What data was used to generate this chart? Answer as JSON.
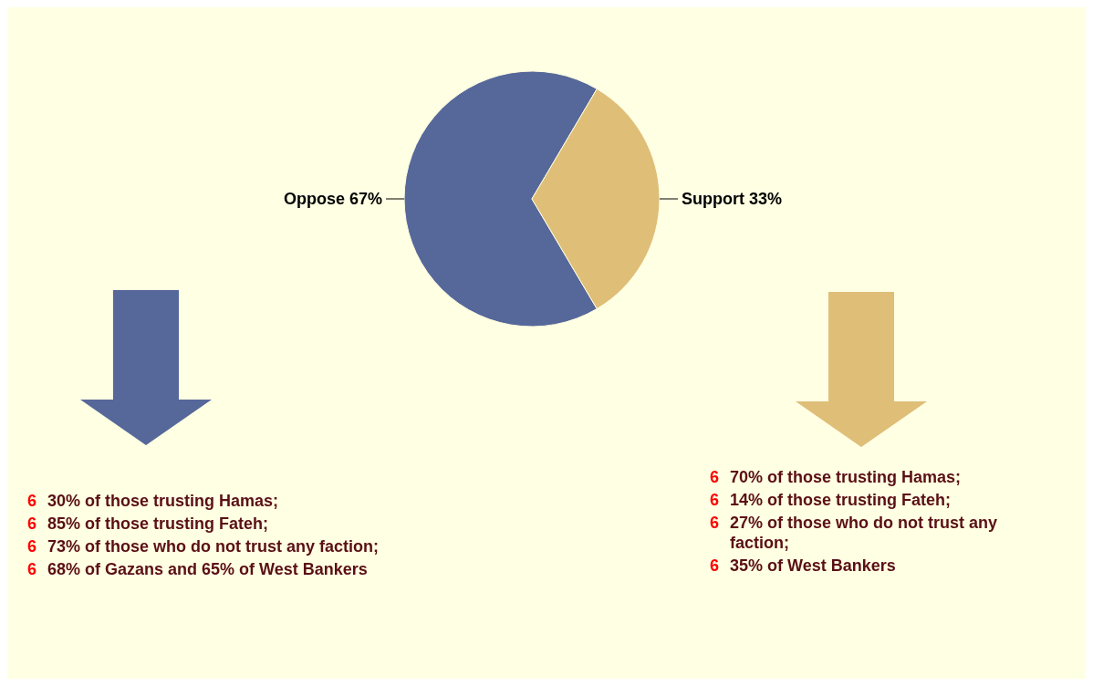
{
  "chart_data": {
    "type": "pie",
    "categories": [
      "Oppose",
      "Support"
    ],
    "values": [
      67,
      33
    ],
    "colors": [
      "#56689a",
      "#dfbe78"
    ],
    "value_labels": [
      "67%",
      "33%"
    ],
    "legend": false,
    "annotations": [
      "6 30% of those trusting Hamas;",
      "6 85% of those trusting Fateh;",
      "6 73% of those who do not trust any faction;",
      "6 68% of Gazans and 65% of West Bankers",
      "6 70% of those trusting Hamas;",
      "6 14% of those trusting Fateh;",
      "6 27% of those who do not trust any faction;",
      "6 35% of West Bankers"
    ]
  }
}
